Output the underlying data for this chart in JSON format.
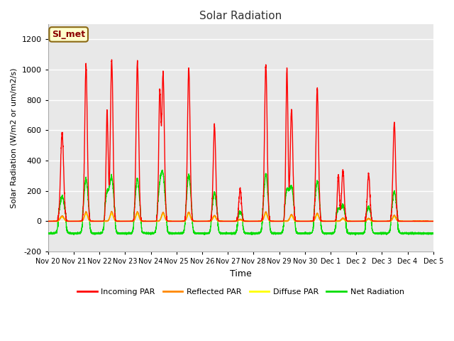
{
  "title": "Solar Radiation",
  "xlabel": "Time",
  "ylabel": "Solar Radiation (W/m2 or um/m2/s)",
  "ylim": [
    -200,
    1300
  ],
  "yticks": [
    -200,
    0,
    200,
    400,
    600,
    800,
    1000,
    1200
  ],
  "background_color": "#ffffff",
  "plot_bg_color": "#e8e8e8",
  "grid_color": "#ffffff",
  "label_box_text": "SI_met",
  "label_box_facecolor": "#ffffcc",
  "label_box_edgecolor": "#8b6914",
  "label_box_textcolor": "#8b0000",
  "series": {
    "incoming": {
      "color": "#ff0000",
      "label": "Incoming PAR",
      "lw": 1.0
    },
    "reflected": {
      "color": "#ff8800",
      "label": "Reflected PAR",
      "lw": 1.0
    },
    "diffuse": {
      "color": "#ffff00",
      "label": "Diffuse PAR",
      "lw": 1.2
    },
    "net": {
      "color": "#00dd00",
      "label": "Net Radiation",
      "lw": 1.0
    }
  },
  "xtick_labels": [
    "Nov 20",
    "Nov 21",
    "Nov 22",
    "Nov 23",
    "Nov 24",
    "Nov 25",
    "Nov 26",
    "Nov 27",
    "Nov 28",
    "Nov 29",
    "Nov 30",
    "Dec 1",
    "Dec 2",
    "Dec 3",
    "Dec 4",
    "Dec 5"
  ],
  "n_days": 15,
  "pts_per_day": 288
}
